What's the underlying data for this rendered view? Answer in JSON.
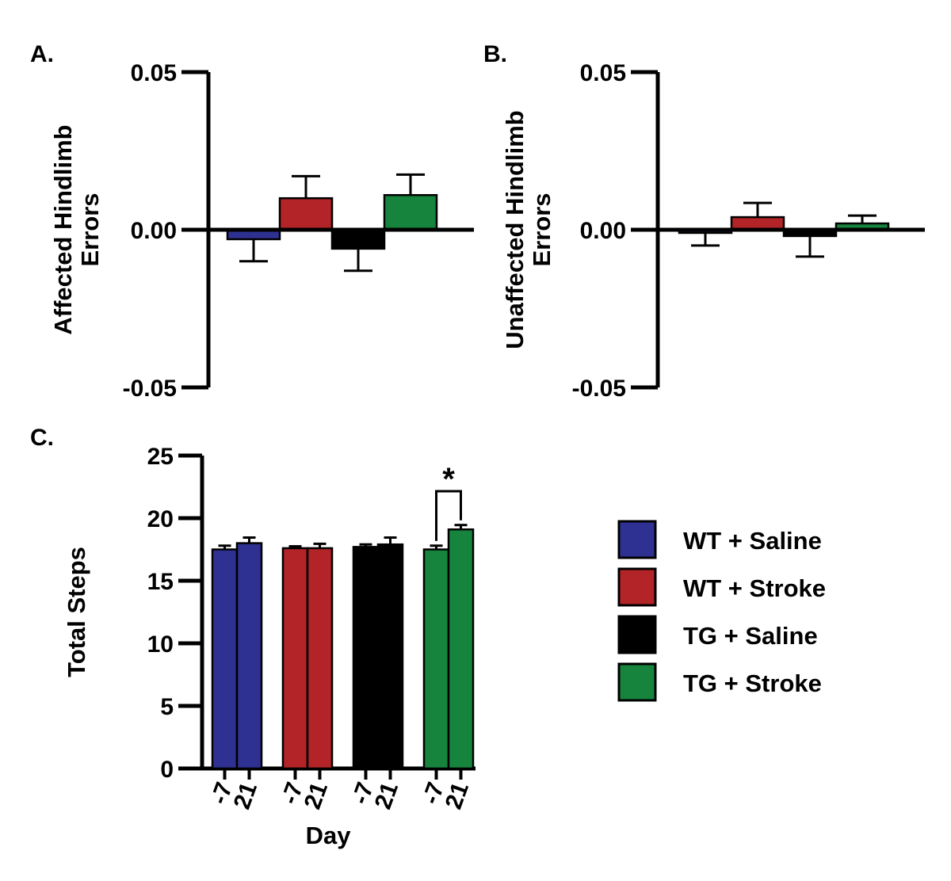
{
  "colors": {
    "wt_saline": "#2e3192",
    "wt_stroke": "#b22427",
    "tg_saline": "#000000",
    "tg_stroke": "#16843d"
  },
  "chart_data": [
    {
      "id": "A",
      "type": "bar",
      "panel_label": "A.",
      "ylabel_lines": [
        "Affected Hindlimb",
        "Errors"
      ],
      "ylim": [
        -0.05,
        0.05
      ],
      "yticks": [
        "0.05",
        "0.00",
        "-0.05"
      ],
      "categories": [
        "WT + Saline",
        "WT + Stroke",
        "TG + Saline",
        "TG + Stroke"
      ],
      "values": [
        -0.003,
        0.01,
        -0.006,
        0.011
      ],
      "errors": [
        0.007,
        0.007,
        0.007,
        0.0065
      ]
    },
    {
      "id": "B",
      "type": "bar",
      "panel_label": "B.",
      "ylabel_lines": [
        "Unaffected Hindlimb",
        "Errors"
      ],
      "ylim": [
        -0.05,
        0.05
      ],
      "yticks": [
        "0.05",
        "0.00",
        "-0.05"
      ],
      "categories": [
        "WT + Saline",
        "WT + Stroke",
        "TG + Saline",
        "TG + Stroke"
      ],
      "values": [
        -0.001,
        0.004,
        -0.002,
        0.002
      ],
      "errors": [
        0.004,
        0.0045,
        0.0065,
        0.0025
      ]
    },
    {
      "id": "C",
      "type": "bar",
      "panel_label": "C.",
      "ylabel": "Total Steps",
      "xlabel": "Day",
      "ylim": [
        0,
        25
      ],
      "yticks": [
        "0",
        "5",
        "10",
        "15",
        "20",
        "25"
      ],
      "groups": [
        {
          "name": "WT + Saline",
          "days": [
            "-7",
            "21"
          ],
          "values": [
            17.5,
            18.0
          ],
          "errors": [
            0.3,
            0.45
          ]
        },
        {
          "name": "WT + Stroke",
          "days": [
            "-7",
            "21"
          ],
          "values": [
            17.6,
            17.6
          ],
          "errors": [
            0.15,
            0.35
          ]
        },
        {
          "name": "TG + Saline",
          "days": [
            "-7",
            "21"
          ],
          "values": [
            17.7,
            17.9
          ],
          "errors": [
            0.2,
            0.55
          ]
        },
        {
          "name": "TG + Stroke",
          "days": [
            "-7",
            "21"
          ],
          "values": [
            17.5,
            19.1
          ],
          "errors": [
            0.3,
            0.35
          ]
        }
      ],
      "significance": {
        "label": "*",
        "group": "TG + Stroke"
      }
    }
  ],
  "legend": [
    {
      "label": "WT + Saline",
      "color_key": "wt_saline"
    },
    {
      "label": "WT + Stroke",
      "color_key": "wt_stroke"
    },
    {
      "label": "TG + Saline",
      "color_key": "tg_saline"
    },
    {
      "label": "TG + Stroke",
      "color_key": "tg_stroke"
    }
  ]
}
